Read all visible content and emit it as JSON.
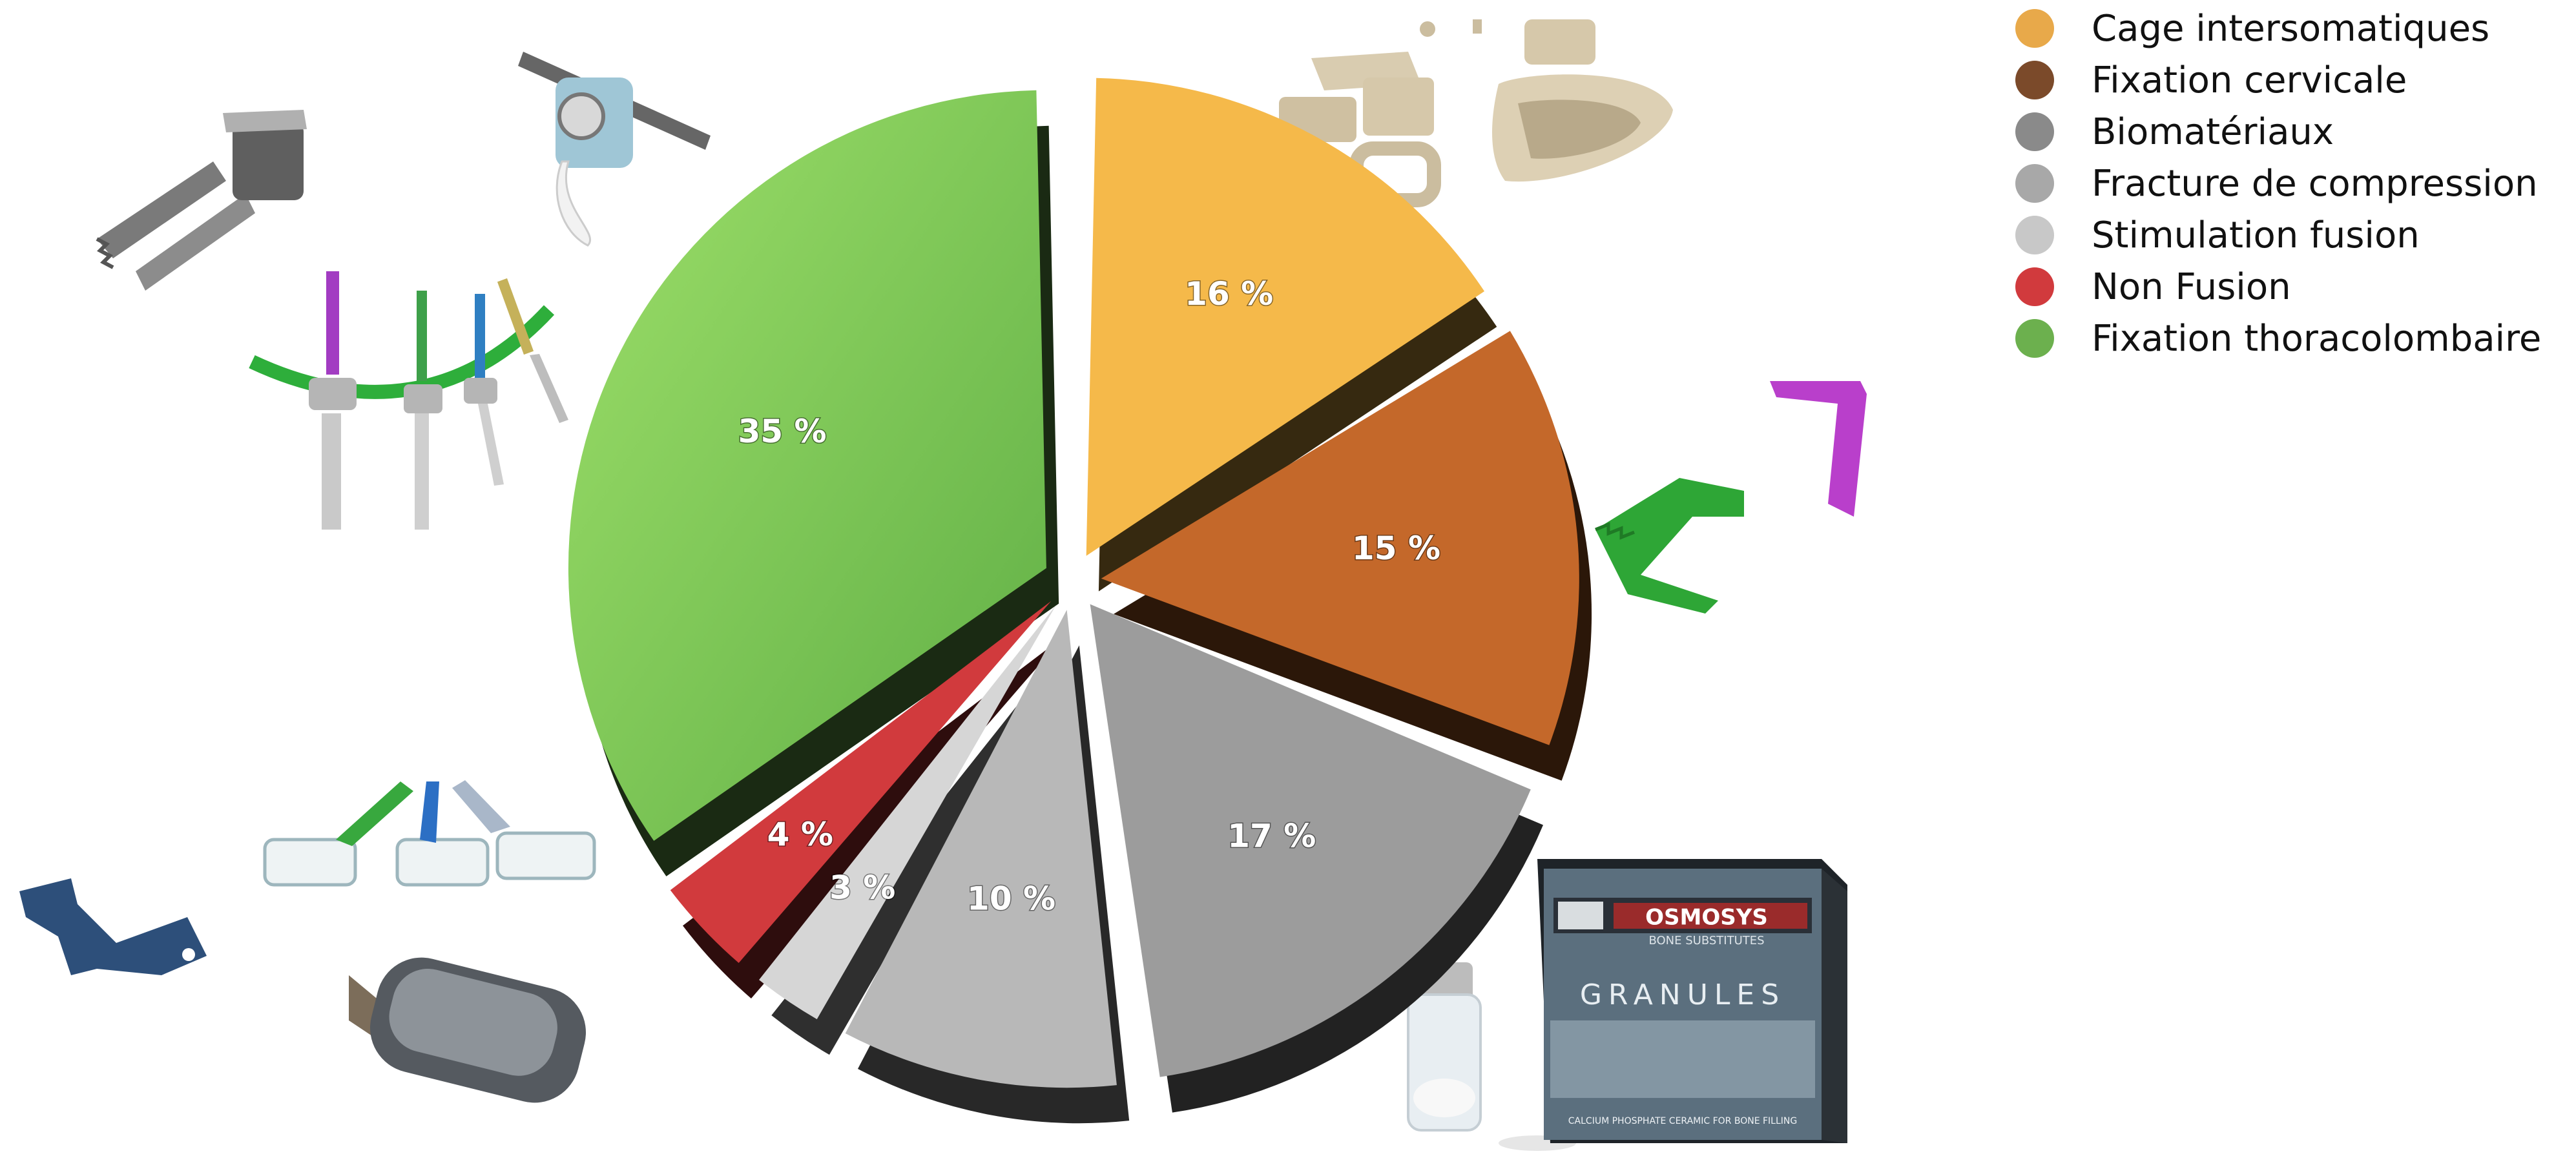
{
  "chart_data": {
    "type": "pie",
    "title": "",
    "exploded": true,
    "three_d": true,
    "legend_position": "top-right",
    "slices": [
      {
        "name": "Cage intersomatiques",
        "value": 16,
        "label": "16 %",
        "color": "#F5B94A"
      },
      {
        "name": "Fixation cervicale",
        "value": 15,
        "label": "15 %",
        "color": "#C4682A"
      },
      {
        "name": "Biomatériaux",
        "value": 17,
        "label": "17 %",
        "color": "#9C9C9C"
      },
      {
        "name": "Fracture de compression",
        "value": 10,
        "label": "10 %",
        "color": "#B8B8B8"
      },
      {
        "name": "Stimulation fusion",
        "value": 3,
        "label": "3 %",
        "color": "#D6D6D6"
      },
      {
        "name": "Non Fusion",
        "value": 4,
        "label": "4 %",
        "color": "#D13A3D"
      },
      {
        "name": "Fixation thoracolombaire",
        "value": 35,
        "label": "35 %",
        "color": "#74C155"
      }
    ]
  },
  "legend": {
    "items": [
      {
        "label": "Cage intersomatiques",
        "color": "#E8A94A"
      },
      {
        "label": "Fixation cervicale",
        "color": "#7B4A2A"
      },
      {
        "label": "Biomatériaux",
        "color": "#8A8A8A"
      },
      {
        "label": "Fracture de compression",
        "color": "#A8A8A8"
      },
      {
        "label": "Stimulation fusion",
        "color": "#C8C8C8"
      },
      {
        "label": "Non Fusion",
        "color": "#D13A3D"
      },
      {
        "label": "Fixation thoracolombaire",
        "color": "#6CB04E"
      }
    ]
  },
  "product_box": {
    "brand": "OSMOSYS",
    "subtitle": "BONE SUBSTITUTES",
    "product": "GRANULES",
    "caption": "CALCIUM PHOSPHATE CERAMIC FOR BONE FILLING"
  },
  "illustrations": [
    "pedicle-screw-clamp-icon",
    "rod-connector-icon",
    "polyaxial-screws-rod-icon",
    "interbody-cages-icon",
    "cervical-staple-icon",
    "kyphoplasty-balloons-icon",
    "bone-stimulator-icon",
    "interspinous-spacer-icon",
    "bone-substitute-vial-icon"
  ]
}
